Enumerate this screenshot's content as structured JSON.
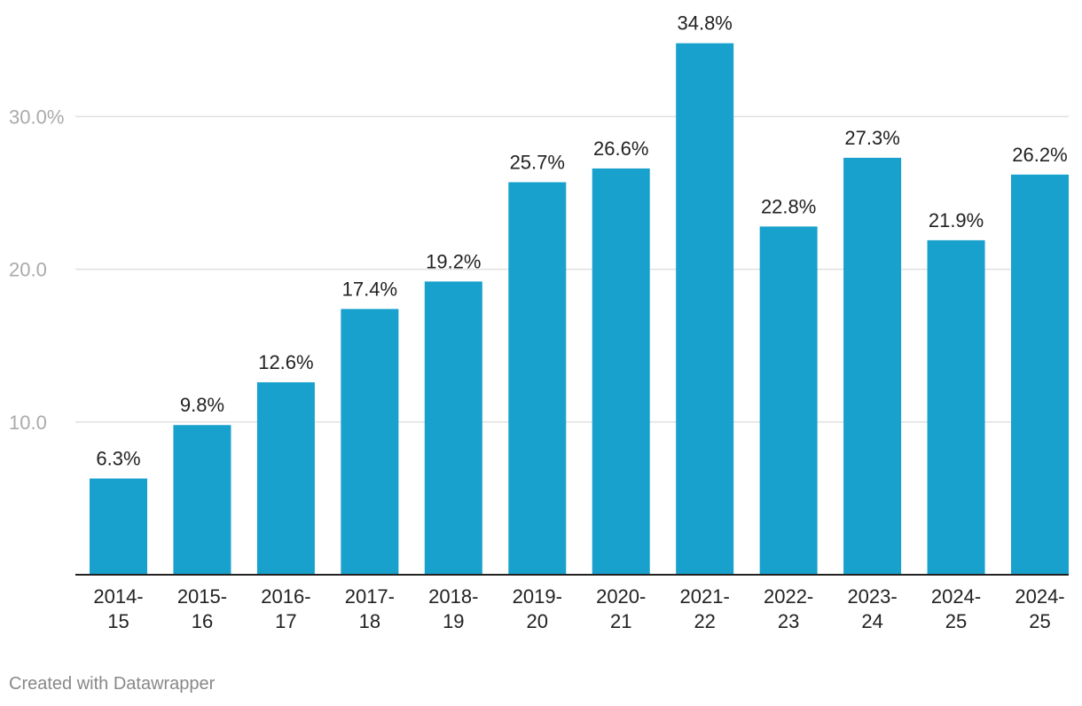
{
  "chart_data": {
    "type": "bar",
    "title": "",
    "xlabel": "",
    "ylabel": "",
    "categories": [
      "2014-15",
      "2015-16",
      "2016-17",
      "2017-18",
      "2018-19",
      "2019-20",
      "2020-21",
      "2021-22",
      "2022-23",
      "2023-24",
      "2024-25",
      "2024-25"
    ],
    "values": [
      6.3,
      9.8,
      12.6,
      17.4,
      19.2,
      25.7,
      26.6,
      34.8,
      22.8,
      27.3,
      21.9,
      26.2
    ],
    "value_labels": [
      "6.3%",
      "9.8%",
      "12.6%",
      "17.4%",
      "19.2%",
      "25.7%",
      "26.6%",
      "34.8%",
      "22.8%",
      "27.3%",
      "21.9%",
      "26.2%"
    ],
    "ylim": [
      0,
      35
    ],
    "y_ticks": [
      10,
      20,
      30
    ],
    "y_tick_labels": [
      "10.0",
      "20.0",
      "30.0%"
    ],
    "grid": true,
    "bar_color": "#18a1cd",
    "gridline_color": "#e0e0e0",
    "baseline_color": "#222222"
  },
  "footer": {
    "credit": "Created with Datawrapper"
  }
}
